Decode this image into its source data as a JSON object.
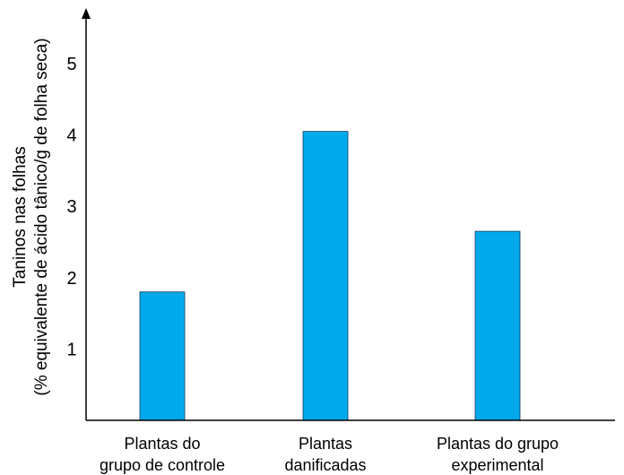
{
  "chart_data": {
    "type": "bar",
    "title": "",
    "categories": [
      [
        "Plantas do",
        "grupo de controle"
      ],
      [
        "Plantas",
        "danificadas"
      ],
      [
        "Plantas do grupo",
        "experimental"
      ]
    ],
    "values": [
      1.8,
      4.05,
      2.65
    ],
    "ylabel": [
      "Taninos nas folhas",
      "(% equivalente de ácido tânico/g de folha seca)"
    ],
    "xlabel": "",
    "ylim": [
      0,
      5
    ],
    "yticks": [
      "1",
      "2",
      "3",
      "4",
      "5"
    ],
    "grid": false,
    "bar_color": "#00a9ec",
    "axis_color": "#000000"
  }
}
